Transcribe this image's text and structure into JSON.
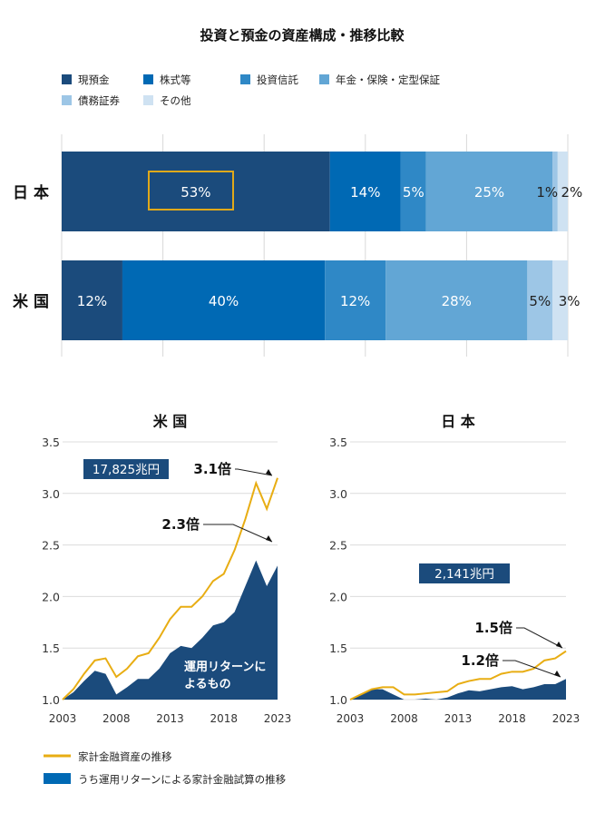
{
  "title": "投資と預金の資産構成・推移比較",
  "colors": {
    "cash": "#1b4b7c",
    "stocks": "#0069b4",
    "funds": "#2f88c6",
    "pension": "#62a6d5",
    "bonds": "#9dc6e6",
    "other": "#cfe2f2",
    "total_line": "#e8ad13",
    "return_area": "#1b4b7c",
    "highlight": "#e0a91a"
  },
  "chart_data": [
    {
      "type": "bar",
      "orientation": "horizontal-stacked-100",
      "legend": [
        "現預金",
        "株式等",
        "投資信託",
        "年金・保険・定型保証",
        "債務証券",
        "その他"
      ],
      "legend_placement": "top-left",
      "categories": [
        "日本",
        "米国"
      ],
      "series": [
        {
          "name": "現預金",
          "values": [
            53,
            12
          ]
        },
        {
          "name": "株式等",
          "values": [
            14,
            40
          ]
        },
        {
          "name": "投資信託",
          "values": [
            5,
            12
          ]
        },
        {
          "name": "年金・保険・定型保証",
          "values": [
            25,
            28
          ]
        },
        {
          "name": "債務証券",
          "values": [
            1,
            5
          ]
        },
        {
          "name": "その他",
          "values": [
            2,
            3
          ]
        }
      ],
      "xlim": [
        0,
        100
      ],
      "grid": true,
      "highlighted": "日本 現預金 53%"
    },
    {
      "type": "area",
      "title": "米 国",
      "x": [
        2003,
        2004,
        2005,
        2006,
        2007,
        2008,
        2009,
        2010,
        2011,
        2012,
        2013,
        2014,
        2015,
        2016,
        2017,
        2018,
        2019,
        2020,
        2021,
        2022,
        2023
      ],
      "xticks": [
        "2003",
        "2008",
        "2013",
        "2018",
        "2023"
      ],
      "yticks": [
        "1.0",
        "1.5",
        "2.0",
        "2.5",
        "3.0",
        "3.5"
      ],
      "ylim": [
        1.0,
        3.5
      ],
      "grid": true,
      "series": [
        {
          "name": "家計金融資産の推移",
          "type": "line",
          "values": [
            1.0,
            1.1,
            1.25,
            1.38,
            1.4,
            1.22,
            1.3,
            1.42,
            1.45,
            1.6,
            1.78,
            1.9,
            1.9,
            2.0,
            2.15,
            2.22,
            2.45,
            2.75,
            3.1,
            2.85,
            3.15
          ]
        },
        {
          "name": "うち運用リターンによる家計金融試算の推移",
          "type": "area",
          "values": [
            1.0,
            1.07,
            1.18,
            1.28,
            1.25,
            1.05,
            1.12,
            1.2,
            1.2,
            1.3,
            1.45,
            1.52,
            1.5,
            1.6,
            1.72,
            1.75,
            1.85,
            2.1,
            2.35,
            2.1,
            2.3
          ]
        }
      ],
      "annotations": {
        "amount": "17,825兆円",
        "total_ratio": "3.1倍",
        "return_ratio": "2.3倍",
        "area_label_1": "運用リターンに",
        "area_label_2": "よるもの"
      }
    },
    {
      "type": "area",
      "title": "日 本",
      "x": [
        2003,
        2004,
        2005,
        2006,
        2007,
        2008,
        2009,
        2010,
        2011,
        2012,
        2013,
        2014,
        2015,
        2016,
        2017,
        2018,
        2019,
        2020,
        2021,
        2022,
        2023
      ],
      "xticks": [
        "2003",
        "2008",
        "2013",
        "2018",
        "2023"
      ],
      "yticks": [
        "1.0",
        "1.5",
        "2.0",
        "2.5",
        "3.0",
        "3.5"
      ],
      "ylim": [
        1.0,
        3.5
      ],
      "grid": true,
      "series": [
        {
          "name": "家計金融資産の推移",
          "type": "line",
          "values": [
            1.0,
            1.05,
            1.1,
            1.12,
            1.12,
            1.05,
            1.05,
            1.06,
            1.07,
            1.08,
            1.15,
            1.18,
            1.2,
            1.2,
            1.25,
            1.27,
            1.27,
            1.3,
            1.38,
            1.4,
            1.47
          ]
        },
        {
          "name": "うち運用リターンによる家計金融試算の推移",
          "type": "area",
          "values": [
            1.0,
            1.05,
            1.1,
            1.1,
            1.05,
            1.0,
            1.0,
            1.01,
            1.0,
            1.02,
            1.06,
            1.09,
            1.08,
            1.1,
            1.12,
            1.13,
            1.1,
            1.12,
            1.15,
            1.15,
            1.2
          ]
        }
      ],
      "annotations": {
        "amount": "2,141兆円",
        "total_ratio": "1.5倍",
        "return_ratio": "1.2倍"
      }
    }
  ],
  "bottom_legend": [
    "家計金融資産の推移",
    "うち運用リターンによる家計金融試算の推移"
  ]
}
